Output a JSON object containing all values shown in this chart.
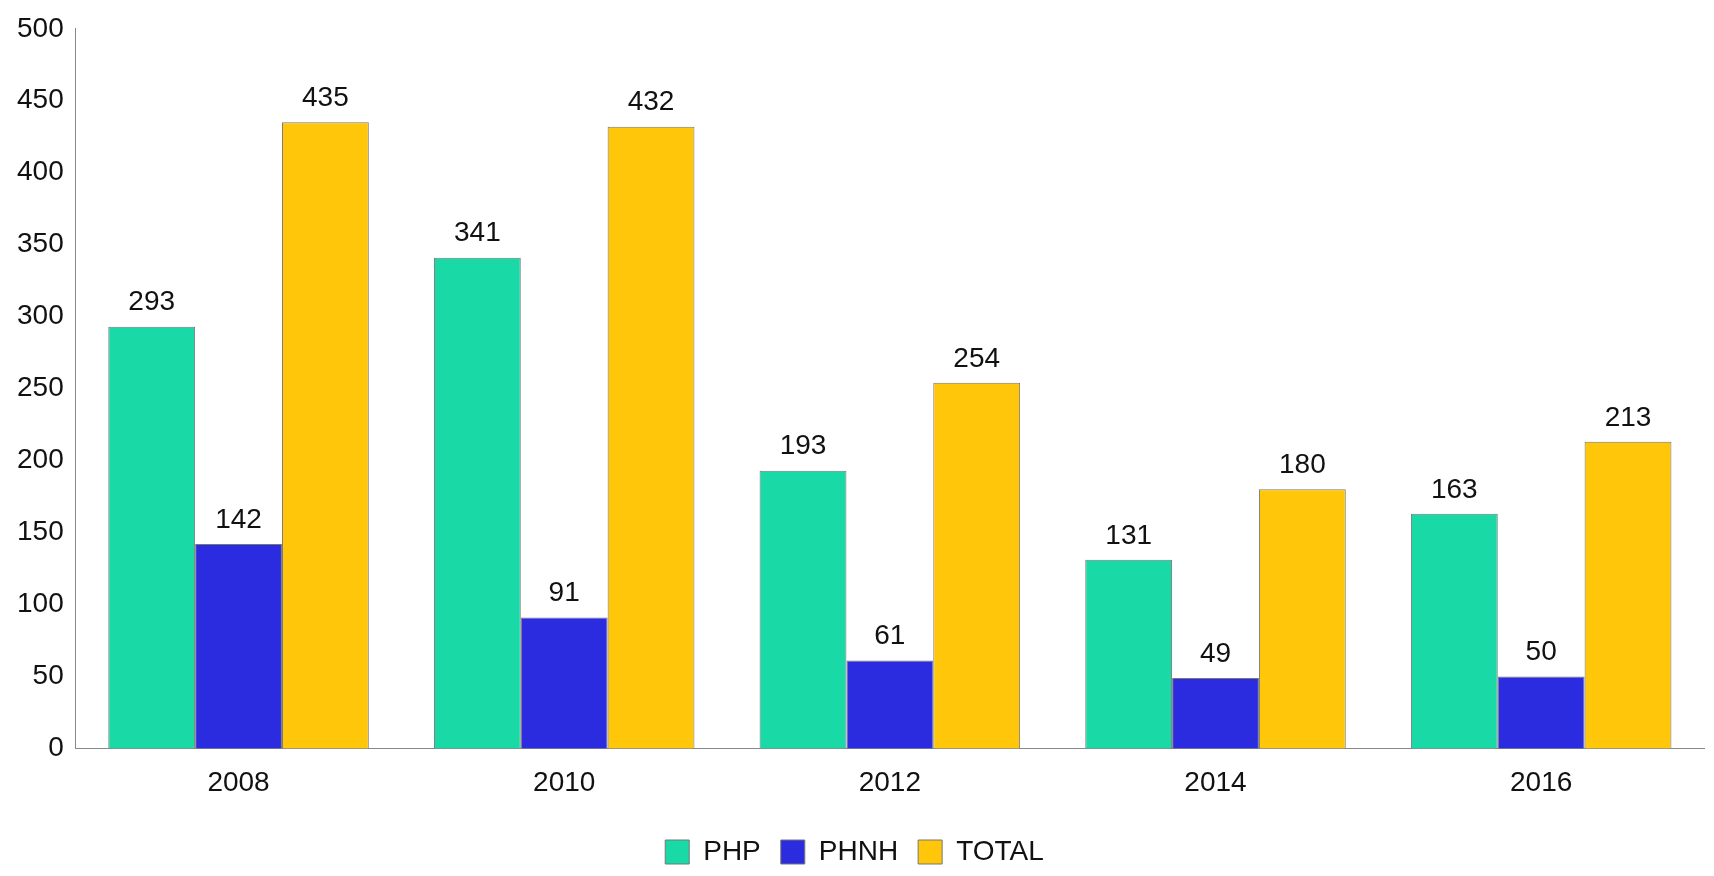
{
  "chart_data": {
    "type": "bar",
    "categories": [
      "2008",
      "2010",
      "2012",
      "2014",
      "2016"
    ],
    "series": [
      {
        "name": "PHP",
        "color": "#19d9a6",
        "values": [
          293,
          341,
          193,
          131,
          163
        ]
      },
      {
        "name": "PHNH",
        "color": "#2b2be0",
        "values": [
          142,
          91,
          61,
          49,
          50
        ]
      },
      {
        "name": "TOTAL",
        "color": "#ffc60a",
        "values": [
          435,
          432,
          254,
          180,
          213
        ]
      }
    ],
    "ylim": [
      0,
      500
    ],
    "yticks": [
      0,
      50,
      100,
      150,
      200,
      250,
      300,
      350,
      400,
      450,
      500
    ],
    "grid": false,
    "legend": "bottom",
    "data_labels": true
  }
}
